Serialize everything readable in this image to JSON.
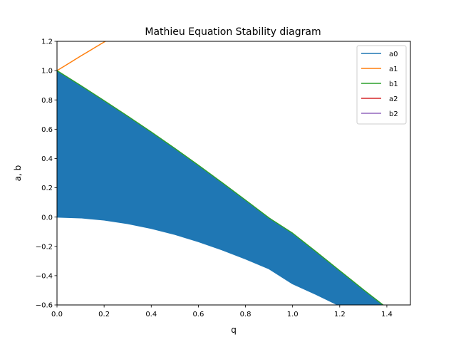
{
  "chart_data": {
    "type": "area",
    "title": "Mathieu Equation Stability diagram",
    "xlabel": "q",
    "ylabel": "a, b",
    "xlim": [
      0.0,
      1.5
    ],
    "ylim": [
      -0.6,
      1.2
    ],
    "xticks": [
      0.0,
      0.2,
      0.4,
      0.6,
      0.8,
      1.0,
      1.2,
      1.4
    ],
    "yticks": [
      -0.6,
      -0.4,
      -0.2,
      0.0,
      0.2,
      0.4,
      0.6,
      0.8,
      1.0,
      1.2
    ],
    "xtick_labels": [
      "0.0",
      "0.2",
      "0.4",
      "0.6",
      "0.8",
      "1.0",
      "1.2",
      "1.4"
    ],
    "ytick_labels": [
      "−0.6",
      "−0.4",
      "−0.2",
      "0.0",
      "0.2",
      "0.4",
      "0.6",
      "0.8",
      "1.0",
      "1.2"
    ],
    "grid": false,
    "legend_position": "top-right",
    "fill": {
      "color": "#1f77b4",
      "between": [
        "a0",
        "b1"
      ]
    },
    "series": [
      {
        "name": "a0",
        "color": "#1f77b4",
        "x": [
          0.0,
          0.1,
          0.2,
          0.3,
          0.4,
          0.5,
          0.6,
          0.7,
          0.8,
          0.9,
          1.0,
          1.1,
          1.2,
          1.3,
          1.4
        ],
        "y": [
          0.0,
          -0.005,
          -0.02,
          -0.044,
          -0.077,
          -0.118,
          -0.167,
          -0.223,
          -0.285,
          -0.353,
          -0.455,
          -0.528,
          -0.606,
          -0.689,
          -0.776
        ]
      },
      {
        "name": "a1",
        "color": "#ff7f0e",
        "x": [
          0.0,
          0.05,
          0.1,
          0.15,
          0.2,
          0.25,
          0.3
        ],
        "y": [
          1.0,
          1.049,
          1.099,
          1.147,
          1.195,
          1.242,
          1.289
        ]
      },
      {
        "name": "b1",
        "color": "#2ca02c",
        "x": [
          0.0,
          0.1,
          0.2,
          0.3,
          0.4,
          0.5,
          0.6,
          0.7,
          0.8,
          0.9,
          1.0,
          1.1,
          1.2,
          1.3,
          1.4
        ],
        "y": [
          1.0,
          0.899,
          0.795,
          0.689,
          0.581,
          0.469,
          0.354,
          0.236,
          0.116,
          -0.006,
          -0.11,
          -0.237,
          -0.366,
          -0.495,
          -0.62
        ]
      },
      {
        "name": "a2",
        "color": "#d62728",
        "x": [],
        "y": []
      },
      {
        "name": "b2",
        "color": "#9467bd",
        "x": [],
        "y": []
      }
    ]
  }
}
